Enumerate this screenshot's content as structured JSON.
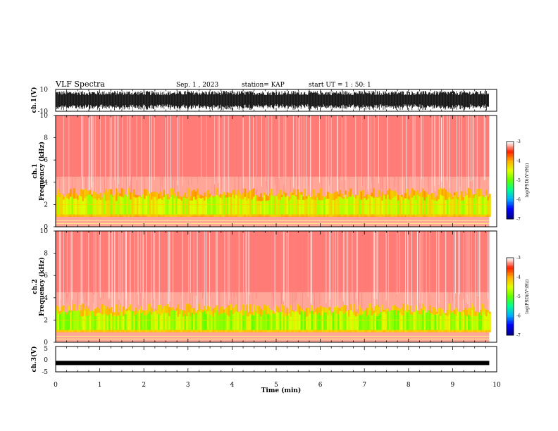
{
  "header": {
    "title": "VLF Spectra",
    "date": "Sep. 1 , 2023",
    "station": "station= KAP",
    "start_ut": "start UT =  1 : 50: 1"
  },
  "chart_data": [
    {
      "id": "ch1-waveform",
      "type": "line",
      "ylabel": "ch.1(V)",
      "ylim": [
        -10,
        10
      ],
      "ytick_labels": [
        "10",
        "-10"
      ],
      "xlim": [
        0,
        10
      ],
      "data_end_min": 9.83,
      "description_values": {
        "typical_min": -8,
        "typical_max": 8
      },
      "color": "#000000"
    },
    {
      "id": "ch1-spectrogram",
      "type": "heatmap",
      "ylabel": "ch.1\nFrequency (kHz)",
      "ylabel_lines": [
        "ch.1",
        "Frequency (kHz)"
      ],
      "ylim": [
        0,
        10
      ],
      "ytick_labels": [
        "0",
        "2",
        "4",
        "6",
        "8",
        "10"
      ],
      "xlim": [
        0,
        10
      ],
      "data_end_min": 9.83,
      "dominant_level_above_4khz": -3.2,
      "band_2_4khz_level": -4.2,
      "band_1_3khz_level": -4.8,
      "lines_khz": [
        0.3,
        0.55,
        1.0,
        2.0
      ],
      "colorbar": {
        "label": "log(PSD)(V²/Hz)",
        "range": [
          -7,
          -3
        ],
        "tick_labels": [
          "-3",
          "-4",
          "-5",
          "-6",
          "-7"
        ]
      }
    },
    {
      "id": "ch2-spectrogram",
      "type": "heatmap",
      "ylabel_lines": [
        "ch.2",
        "Frequency (kHz)"
      ],
      "ylim": [
        0,
        10
      ],
      "ytick_labels": [
        "0",
        "2",
        "4",
        "6",
        "8",
        "10"
      ],
      "xlim": [
        0,
        10
      ],
      "data_end_min": 9.83,
      "dominant_level_above_4khz": -3.2,
      "band_2_4khz_level": -4.3,
      "band_1_3khz_level": -5.0,
      "lines_khz": [
        0.3,
        0.55,
        1.0,
        2.0
      ],
      "colorbar": {
        "label": "log(PSD)(V²/Hz)",
        "range": [
          -7,
          -3
        ],
        "tick_labels": [
          "-3",
          "-4",
          "-5",
          "-6",
          "-7"
        ]
      }
    },
    {
      "id": "ch3-waveform",
      "type": "line",
      "ylabel": "ch.3(V)",
      "ylim": [
        -5,
        5
      ],
      "ytick_labels": [
        "5",
        "0",
        "-5"
      ],
      "xlim": [
        0,
        10
      ],
      "data_end_min": 9.83,
      "constant_value_v": -1.5,
      "color": "#000000"
    }
  ],
  "xaxis": {
    "label": "Time (min)",
    "tick_labels": [
      "0",
      "1",
      "2",
      "3",
      "4",
      "5",
      "6",
      "7",
      "8",
      "9",
      "10"
    ]
  },
  "colormap": [
    "#00008b",
    "#0000ff",
    "#00b0ff",
    "#00ff90",
    "#60ff00",
    "#e0ff00",
    "#ffb000",
    "#ff2000",
    "#ffffff"
  ]
}
